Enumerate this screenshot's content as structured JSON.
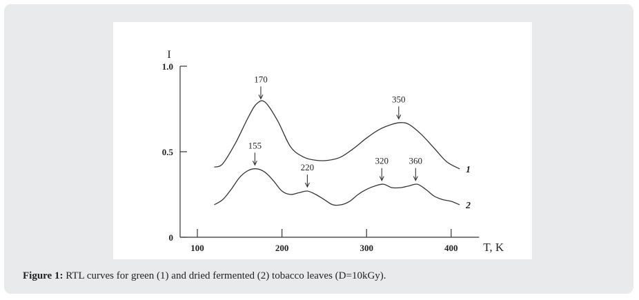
{
  "caption": {
    "label": "Figure 1:",
    "text": "RTL curves for green (1) and dried fermented (2) tobacco leaves (D=10kGy)."
  },
  "chart_data": {
    "type": "line",
    "ylabel": "I",
    "xlabel": "T, K",
    "xlim": [
      85,
      430
    ],
    "ylim": [
      0,
      1.0
    ],
    "x_ticks": [
      100,
      200,
      300,
      400
    ],
    "y_ticks": [
      {
        "value": 0,
        "label": "0"
      },
      {
        "value": 0.5,
        "label": "0.5"
      },
      {
        "value": 1.0,
        "label": "1.0"
      }
    ],
    "series": [
      {
        "name": "1",
        "x": [
          120,
          130,
          145,
          160,
          170,
          180,
          195,
          210,
          225,
          240,
          255,
          270,
          285,
          300,
          315,
          330,
          340,
          350,
          365,
          380,
          395,
          410
        ],
        "values": [
          0.41,
          0.43,
          0.55,
          0.7,
          0.78,
          0.79,
          0.68,
          0.53,
          0.47,
          0.45,
          0.45,
          0.47,
          0.52,
          0.58,
          0.63,
          0.66,
          0.67,
          0.66,
          0.6,
          0.52,
          0.44,
          0.4
        ]
      },
      {
        "name": "2",
        "x": [
          120,
          130,
          140,
          150,
          160,
          170,
          180,
          190,
          200,
          210,
          220,
          230,
          240,
          250,
          260,
          270,
          280,
          290,
          300,
          310,
          320,
          330,
          340,
          350,
          360,
          370,
          380,
          390,
          400,
          410
        ],
        "values": [
          0.19,
          0.22,
          0.28,
          0.35,
          0.39,
          0.4,
          0.38,
          0.33,
          0.27,
          0.25,
          0.26,
          0.27,
          0.25,
          0.22,
          0.19,
          0.19,
          0.21,
          0.25,
          0.28,
          0.3,
          0.31,
          0.29,
          0.29,
          0.3,
          0.31,
          0.28,
          0.24,
          0.22,
          0.21,
          0.19
        ]
      }
    ],
    "annotations": [
      {
        "label": "170",
        "x": 175,
        "curve": 0
      },
      {
        "label": "350",
        "x": 338,
        "curve": 0
      },
      {
        "label": "155",
        "x": 168,
        "curve": 1
      },
      {
        "label": "220",
        "x": 230,
        "curve": 1
      },
      {
        "label": "320",
        "x": 318,
        "curve": 1
      },
      {
        "label": "360",
        "x": 358,
        "curve": 1
      }
    ],
    "curve_labels": [
      "1",
      "2"
    ]
  }
}
